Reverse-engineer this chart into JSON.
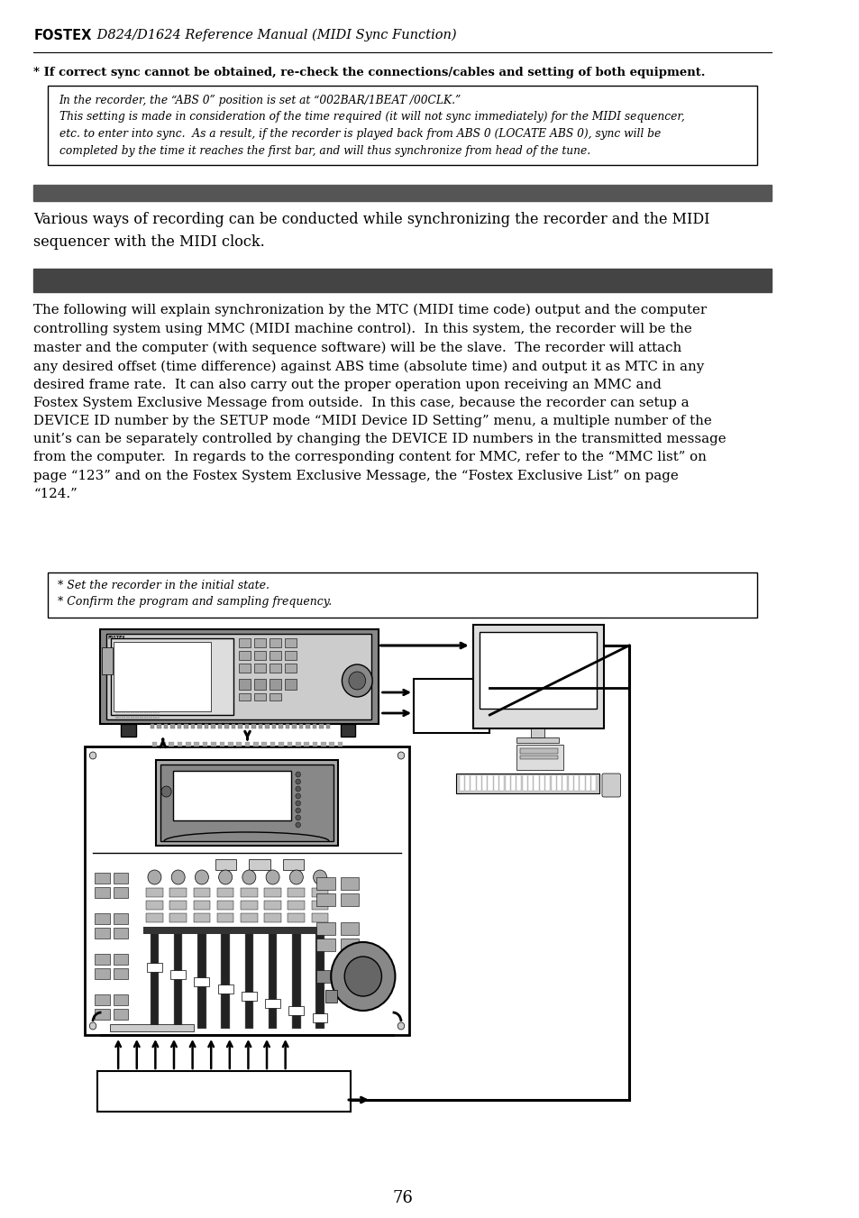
{
  "page_number": "76",
  "background_color": "#ffffff",
  "header_bold_text": "FOSTEX",
  "header_text": " D824/D1624 Reference Manual (MIDI Sync Function)",
  "sync_note": "* If correct sync cannot be obtained, re-check the connections/cables and setting of both equipment.",
  "box1_text": "In the recorder, the “ABS 0” position is set at “002BAR/1BEAT /00CLK.”\nThis setting is made in consideration of the time required (it will not sync immediately) for the MIDI sequencer,\netc. to enter into sync.  As a result, if the recorder is played back from ABS 0 (LOCATE ABS 0), sync will be\ncompleted by the time it reaches the first bar, and will thus synchronize from head of the tune.",
  "gray_bar1_color": "#555555",
  "midi_clock_text": "Various ways of recording can be conducted while synchronizing the recorder and the MIDI\nsequencer with the MIDI clock.",
  "gray_bar2_color": "#444444",
  "body_text": "The following will explain synchronization by the MTC (MIDI time code) output and the computer\ncontrolling system using MMC (MIDI machine control).  In this system, the recorder will be the\nmaster and the computer (with sequence software) will be the slave.  The recorder will attach\nany desired offset (time difference) against ABS time (absolute time) and output it as MTC in any\ndesired frame rate.  It can also carry out the proper operation upon receiving an MMC and\nFostex System Exclusive Message from outside.  In this case, because the recorder can setup a\nDEVICE ID number by the SETUP mode “MIDI Device ID Setting” menu, a multiple number of the\nunit’s can be separately controlled by changing the DEVICE ID numbers in the transmitted message\nfrom the computer.  In regards to the corresponding content for MMC, refer to the “MMC list” on\npage “123” and on the Fostex System Exclusive Message, the “Fostex Exclusive List” on page\n“124.”",
  "box2_text": "* Set the recorder in the initial state.\n* Confirm the program and sampling frequency."
}
